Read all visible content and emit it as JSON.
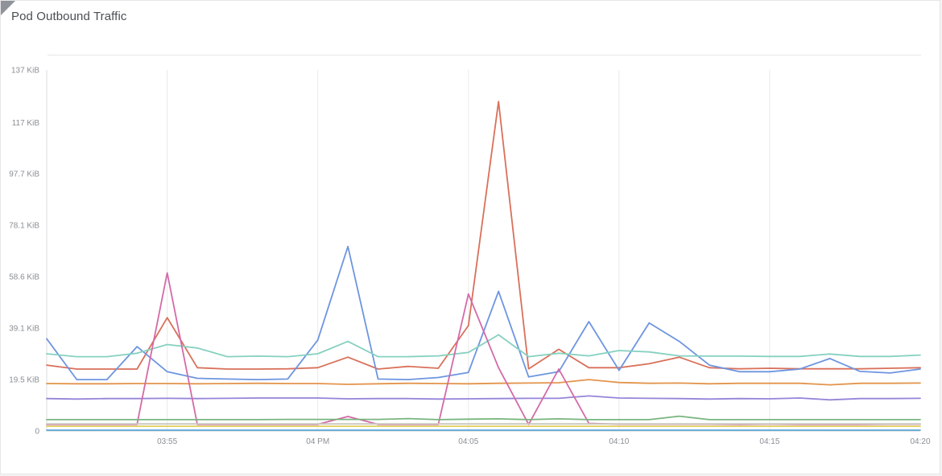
{
  "panel": {
    "title": "Pod Outbound Traffic"
  },
  "chart_data": {
    "type": "line",
    "title": "Pod Outbound Traffic",
    "xlabel": "",
    "ylabel": "",
    "grid": {
      "vertical": true,
      "horizontal": false
    },
    "y_ticks": [
      {
        "value": 0,
        "label": "0"
      },
      {
        "value": 19.5,
        "label": "19.5 KiB"
      },
      {
        "value": 39.1,
        "label": "39.1 KiB"
      },
      {
        "value": 58.6,
        "label": "58.6 KiB"
      },
      {
        "value": 78.1,
        "label": "78.1 KiB"
      },
      {
        "value": 97.7,
        "label": "97.7 KiB"
      },
      {
        "value": 117,
        "label": "117 KiB"
      },
      {
        "value": 137,
        "label": "137 KiB"
      }
    ],
    "ylim": [
      0,
      137
    ],
    "x_ticks": [
      {
        "value": "03:55",
        "label": "03:55"
      },
      {
        "value": "04:00",
        "label": "04 PM"
      },
      {
        "value": "04:05",
        "label": "04:05"
      },
      {
        "value": "04:10",
        "label": "04:10"
      },
      {
        "value": "04:15",
        "label": "04:15"
      },
      {
        "value": "04:20",
        "label": "04:20"
      }
    ],
    "xlim": [
      "03:51",
      "04:20"
    ],
    "x": [
      "03:51",
      "03:52",
      "03:53",
      "03:54",
      "03:55",
      "03:56",
      "03:57",
      "03:58",
      "03:59",
      "04:00",
      "04:01",
      "04:02",
      "04:03",
      "04:04",
      "04:05",
      "04:06",
      "04:07",
      "04:08",
      "04:09",
      "04:10",
      "04:11",
      "04:12",
      "04:13",
      "04:14",
      "04:15",
      "04:16",
      "04:17",
      "04:18",
      "04:19",
      "04:20"
    ],
    "series": [
      {
        "color": "#d9705a",
        "values": [
          25,
          23.5,
          23.5,
          23.5,
          43,
          24,
          23.5,
          23.5,
          23.6,
          24,
          28,
          23.5,
          24.5,
          23.8,
          40,
          125,
          23.6,
          31,
          24,
          24,
          25.5,
          28,
          24,
          23.6,
          23.8,
          23.6,
          23.6,
          23.6,
          23.8,
          24
        ]
      },
      {
        "color": "#6e95e0",
        "values": [
          35,
          19.5,
          19.5,
          32,
          22.5,
          20,
          19.7,
          19.5,
          19.7,
          34.5,
          70,
          19.7,
          19.5,
          20.3,
          22.2,
          53,
          20.5,
          22.5,
          41.5,
          23,
          41,
          34,
          25,
          22.5,
          22.5,
          23.5,
          27.5,
          22.6,
          22,
          23.5
        ]
      },
      {
        "color": "#86d1c0",
        "values": [
          29.3,
          28.2,
          28.2,
          29.5,
          32.8,
          31.5,
          28.2,
          28.4,
          28.2,
          29.3,
          34,
          28.2,
          28.2,
          28.5,
          29.8,
          36.5,
          28.2,
          29.5,
          28.5,
          30.5,
          30,
          28.5,
          28.4,
          28.4,
          28.3,
          28.3,
          29.2,
          28.3,
          28.3,
          28.8
        ]
      },
      {
        "color": "#e3944b",
        "values": [
          18,
          17.9,
          17.9,
          18,
          18,
          17.9,
          18,
          18.1,
          18,
          18,
          17.7,
          17.9,
          18.1,
          18,
          17.9,
          18.1,
          18.2,
          18.3,
          19.5,
          18.4,
          18.1,
          18.2,
          17.9,
          18.1,
          18.1,
          18.1,
          17.5,
          18.1,
          18.1,
          18.2
        ]
      },
      {
        "color": "#9684d9",
        "values": [
          12.3,
          12.1,
          12.3,
          12.3,
          12.4,
          12.3,
          12.4,
          12.5,
          12.5,
          12.5,
          12.2,
          12.3,
          12.3,
          12.1,
          12.2,
          12.3,
          12.4,
          12.4,
          13.3,
          12.5,
          12.4,
          12.3,
          12.1,
          12.3,
          12.2,
          12.5,
          11.8,
          12.3,
          12.3,
          12.4
        ]
      },
      {
        "color": "#d46aa8",
        "values": [
          2.5,
          2.5,
          2.5,
          2.5,
          60,
          2.5,
          2.5,
          2.5,
          2.5,
          2.5,
          5.5,
          2.5,
          2.5,
          2.5,
          52,
          24,
          2.5,
          23.5,
          2.9,
          2.6,
          2.6,
          2.6,
          2.6,
          2.5,
          2.6,
          2.5,
          2.5,
          2.5,
          2.6,
          2.6
        ]
      },
      {
        "color": "#78b57e",
        "values": [
          4.3,
          4.3,
          4.3,
          4.3,
          4.3,
          4.3,
          4.3,
          4.3,
          4.4,
          4.4,
          4.4,
          4.4,
          4.7,
          4.3,
          4.5,
          4.6,
          4.3,
          4.6,
          4.3,
          4.3,
          4.3,
          5.6,
          4.3,
          4.3,
          4.3,
          4.3,
          4.3,
          4.3,
          4.3,
          4.3
        ]
      },
      {
        "color": "#e0cf5a",
        "values": [
          1.8,
          1.8,
          1.8,
          1.8,
          1.8,
          1.8,
          1.8,
          1.8,
          1.8,
          1.8,
          1.8,
          1.8,
          1.8,
          1.8,
          1.8,
          1.8,
          1.8,
          1.8,
          1.8,
          1.8,
          1.8,
          1.8,
          1.8,
          1.8,
          1.8,
          1.8,
          1.8,
          1.8,
          1.8,
          1.8
        ]
      },
      {
        "color": "#c9c7bf",
        "values": [
          2.7,
          2.7,
          2.7,
          2.7,
          2.7,
          2.7,
          2.7,
          2.7,
          2.7,
          2.7,
          2.7,
          2.7,
          2.7,
          2.7,
          2.7,
          2.7,
          2.7,
          2.7,
          2.7,
          2.7,
          2.7,
          2.7,
          2.7,
          2.7,
          2.7,
          2.7,
          2.7,
          2.7,
          2.7,
          2.7
        ]
      },
      {
        "color": "#5aa8d8",
        "values": [
          0.3,
          0.3,
          0.3,
          0.3,
          0.3,
          0.3,
          0.3,
          0.3,
          0.3,
          0.3,
          0.3,
          0.3,
          0.3,
          0.3,
          0.3,
          0.3,
          0.3,
          0.3,
          0.3,
          0.3,
          0.3,
          0.3,
          0.3,
          0.3,
          0.3,
          0.3,
          0.3,
          0.3,
          0.3,
          0.3
        ]
      }
    ]
  }
}
